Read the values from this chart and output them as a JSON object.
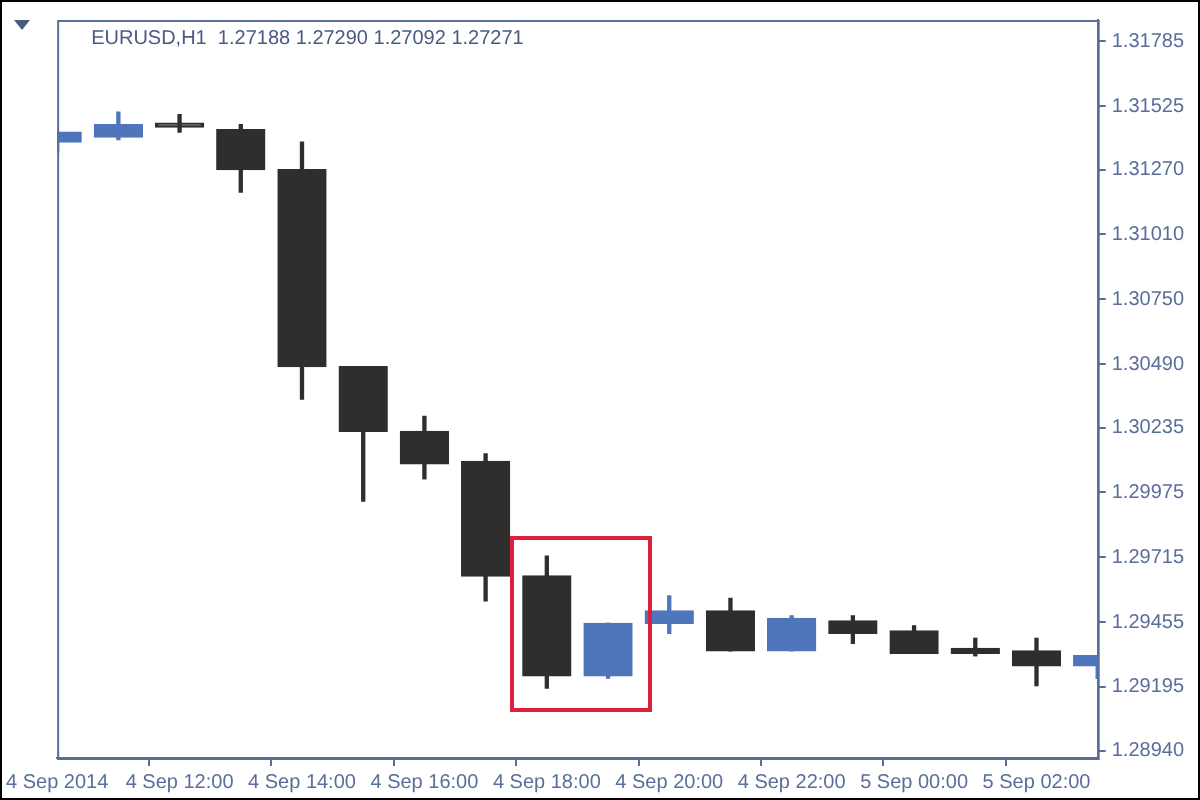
{
  "chart_data": {
    "type": "candlestick",
    "title": "EURUSD,H1  1.27188 1.27290 1.27092 1.27271",
    "categories": [
      "4 Sep 2014",
      null,
      "4 Sep 12:00",
      null,
      "4 Sep 14:00",
      null,
      "4 Sep 16:00",
      null,
      "4 Sep 18:00",
      null,
      "4 Sep 20:00",
      null,
      "4 Sep 22:00",
      null,
      "5 Sep 00:00",
      null,
      "5 Sep 02:00",
      null
    ],
    "ohlc": [
      [
        1.3138,
        1.3142,
        1.3134,
        1.3142
      ],
      [
        1.314,
        1.315,
        1.3139,
        1.3145
      ],
      [
        1.3144,
        1.3149,
        1.3142,
        1.3144
      ],
      [
        1.3143,
        1.3145,
        1.3118,
        1.3127
      ],
      [
        1.3127,
        1.3138,
        1.3035,
        1.3048
      ],
      [
        1.3048,
        1.3048,
        1.2994,
        1.3022
      ],
      [
        1.3022,
        1.3028,
        1.3003,
        1.3009
      ],
      [
        1.301,
        1.3013,
        1.2954,
        1.2964
      ],
      [
        1.2964,
        1.2972,
        1.2919,
        1.2924
      ],
      [
        1.2924,
        1.2945,
        1.2923,
        1.2945
      ],
      [
        1.2945,
        1.2956,
        1.2941,
        1.295
      ],
      [
        1.295,
        1.2955,
        1.2934,
        1.2934
      ],
      [
        1.2934,
        1.2948,
        1.2934,
        1.2947
      ],
      [
        1.2946,
        1.2948,
        1.2937,
        1.2941
      ],
      [
        1.2942,
        1.2944,
        1.2933,
        1.2933
      ],
      [
        1.2935,
        1.2939,
        1.2932,
        1.2933
      ],
      [
        1.2934,
        1.2939,
        1.292,
        1.2928
      ],
      [
        1.2928,
        1.2932,
        1.2923,
        1.2932
      ]
    ],
    "colors": [
      "#4f75bb",
      "#4f75bb",
      "#2e2e2e",
      "#2e2e2e",
      "#2e2e2e",
      "#2e2e2e",
      "#2e2e2e",
      "#2e2e2e",
      "#2e2e2e",
      "#4f75bb",
      "#4f75bb",
      "#2e2e2e",
      "#4f75bb",
      "#2e2e2e",
      "#2e2e2e",
      "#2e2e2e",
      "#2e2e2e",
      "#4f75bb"
    ],
    "ylim": [
      1.2891,
      1.3187
    ],
    "yticks": [
      {
        "value": 1.2894,
        "label": "1.28940"
      },
      {
        "value": 1.29195,
        "label": "1.29195"
      },
      {
        "value": 1.29455,
        "label": "1.29455"
      },
      {
        "value": 1.29715,
        "label": "1.29715"
      },
      {
        "value": 1.29975,
        "label": "1.29975"
      },
      {
        "value": 1.30235,
        "label": "1.30235"
      },
      {
        "value": 1.3049,
        "label": "1.30490"
      },
      {
        "value": 1.3075,
        "label": "1.30750"
      },
      {
        "value": 1.3101,
        "label": "1.31010"
      },
      {
        "value": 1.3127,
        "label": "1.31270"
      },
      {
        "value": 1.31525,
        "label": "1.31525"
      },
      {
        "value": 1.31785,
        "label": "1.31785"
      }
    ]
  }
}
